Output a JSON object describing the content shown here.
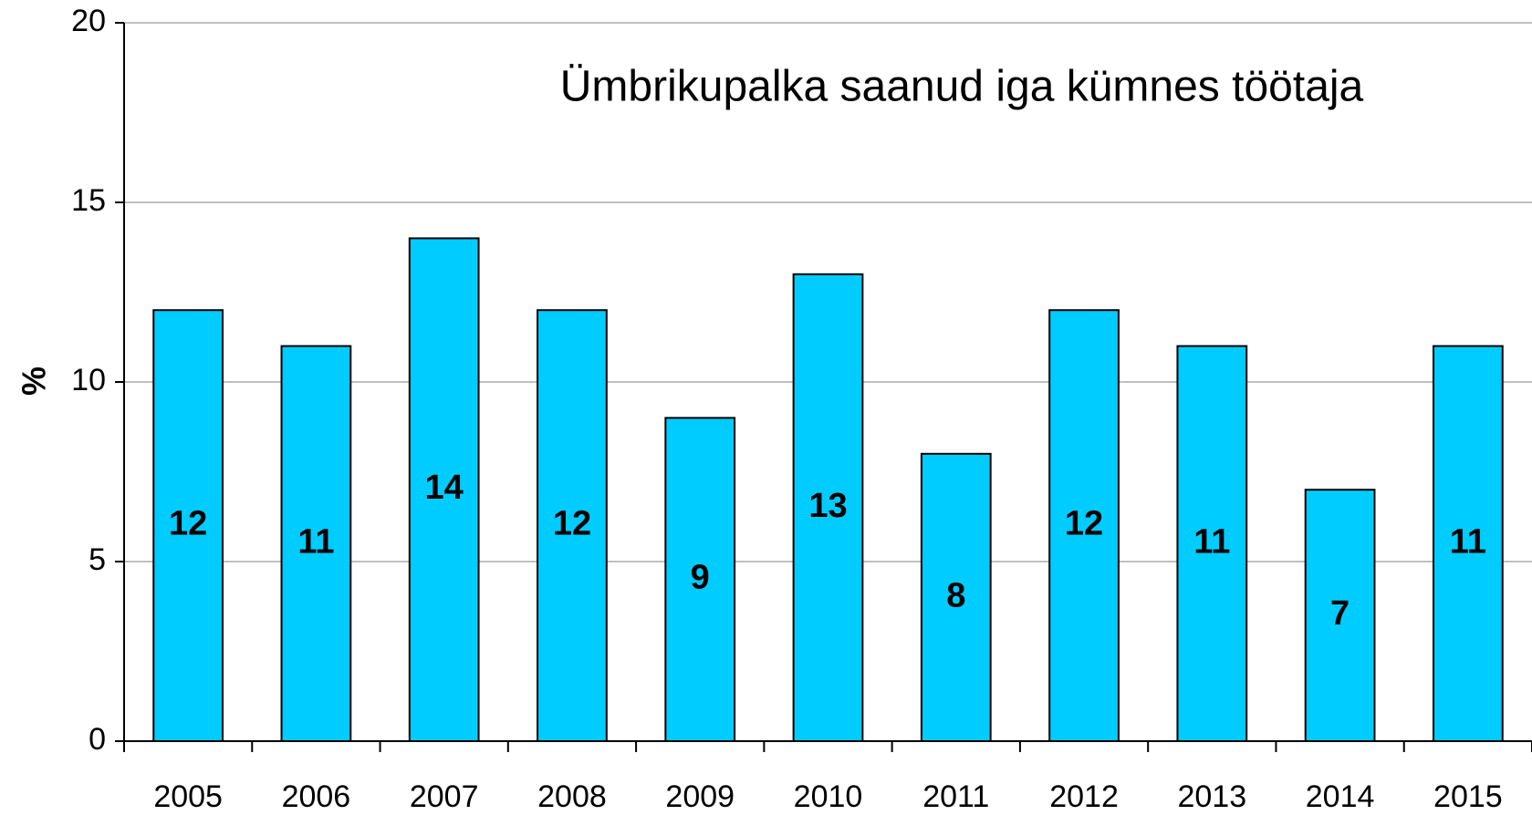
{
  "chart_data": {
    "type": "bar",
    "title": "Ümbrikupalka saanud iga kümnes töötaja",
    "y_label": "%",
    "categories": [
      "2005",
      "2006",
      "2007",
      "2008",
      "2009",
      "2010",
      "2011",
      "2012",
      "2013",
      "2014",
      "2015"
    ],
    "values": [
      12,
      11,
      14,
      12,
      9,
      13,
      8,
      12,
      11,
      7,
      11
    ],
    "color": "#00ccff",
    "ylim": [
      0,
      20
    ],
    "yticks": [
      0,
      5,
      10,
      15,
      20
    ],
    "grid": true
  }
}
